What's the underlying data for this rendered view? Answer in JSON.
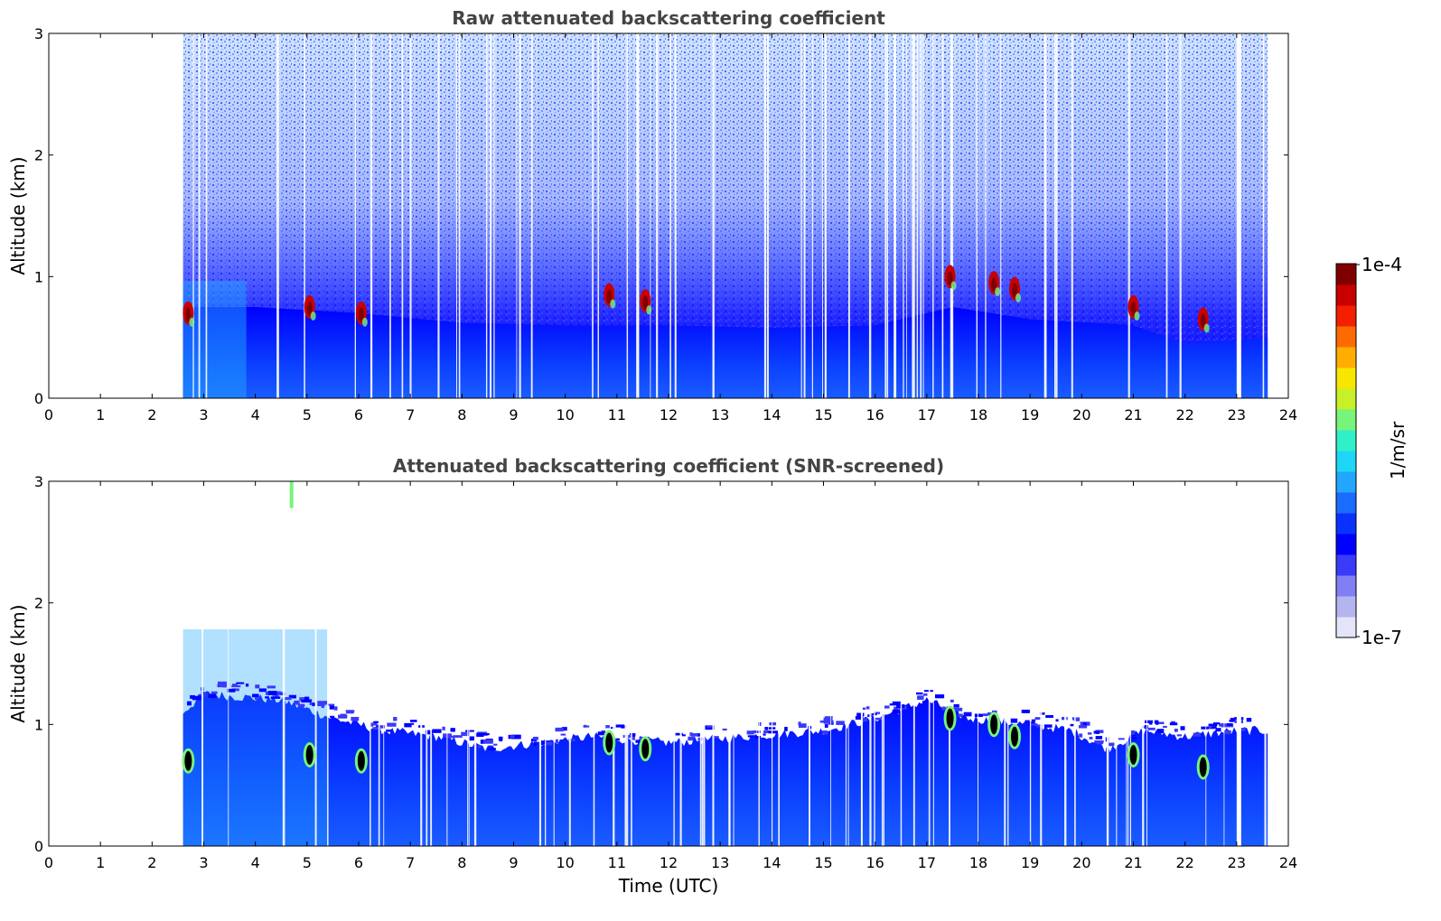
{
  "chart_data": [
    {
      "type": "heatmap",
      "title": "Raw attenuated backscattering coefficient",
      "xlabel": "",
      "ylabel": "Altitude (km)",
      "xlim": [
        0,
        24
      ],
      "ylim": [
        0,
        3
      ],
      "x_ticks": [
        "0",
        "1",
        "2",
        "3",
        "4",
        "5",
        "6",
        "7",
        "8",
        "9",
        "10",
        "11",
        "12",
        "13",
        "14",
        "15",
        "16",
        "17",
        "18",
        "19",
        "20",
        "21",
        "22",
        "23",
        "24"
      ],
      "y_ticks": [
        "0",
        "1",
        "2",
        "3"
      ],
      "data_time_range": [
        2.6,
        23.6
      ],
      "boundary_layer_top": [
        {
          "x": 2.6,
          "y": 0.75
        },
        {
          "x": 4.0,
          "y": 0.75
        },
        {
          "x": 6.0,
          "y": 0.7
        },
        {
          "x": 8.0,
          "y": 0.62
        },
        {
          "x": 10.0,
          "y": 0.6
        },
        {
          "x": 12.0,
          "y": 0.6
        },
        {
          "x": 14.0,
          "y": 0.58
        },
        {
          "x": 16.0,
          "y": 0.6
        },
        {
          "x": 17.5,
          "y": 0.75
        },
        {
          "x": 19.0,
          "y": 0.65
        },
        {
          "x": 21.0,
          "y": 0.6
        },
        {
          "x": 22.0,
          "y": 0.45
        },
        {
          "x": 23.6,
          "y": 0.5
        }
      ],
      "cloud_features": [
        {
          "time": 2.7,
          "altitude": 0.7
        },
        {
          "time": 5.05,
          "altitude": 0.75
        },
        {
          "time": 6.05,
          "altitude": 0.7
        },
        {
          "time": 10.85,
          "altitude": 0.85
        },
        {
          "time": 11.55,
          "altitude": 0.8
        },
        {
          "time": 17.45,
          "altitude": 1.0
        },
        {
          "time": 18.3,
          "altitude": 0.95
        },
        {
          "time": 18.7,
          "altitude": 0.9
        },
        {
          "time": 21.0,
          "altitude": 0.75
        },
        {
          "time": 22.35,
          "altitude": 0.65
        }
      ]
    },
    {
      "type": "heatmap",
      "title": "Attenuated backscattering coefficient (SNR-screened)",
      "xlabel": "Time (UTC)",
      "ylabel": "Altitude (km)",
      "xlim": [
        0,
        24
      ],
      "ylim": [
        0,
        3
      ],
      "x_ticks": [
        "0",
        "1",
        "2",
        "3",
        "4",
        "5",
        "6",
        "7",
        "8",
        "9",
        "10",
        "11",
        "12",
        "13",
        "14",
        "15",
        "16",
        "17",
        "18",
        "19",
        "20",
        "21",
        "22",
        "23",
        "24"
      ],
      "y_ticks": [
        "0",
        "1",
        "2",
        "3"
      ],
      "data_time_range": [
        2.6,
        23.6
      ],
      "boundary_layer_top": [
        {
          "x": 2.6,
          "y": 1.1
        },
        {
          "x": 3.0,
          "y": 1.25
        },
        {
          "x": 4.5,
          "y": 1.2
        },
        {
          "x": 5.5,
          "y": 1.05
        },
        {
          "x": 6.5,
          "y": 0.95
        },
        {
          "x": 7.5,
          "y": 0.9
        },
        {
          "x": 8.5,
          "y": 0.8
        },
        {
          "x": 9.5,
          "y": 0.85
        },
        {
          "x": 10.5,
          "y": 0.9
        },
        {
          "x": 12.0,
          "y": 0.85
        },
        {
          "x": 13.5,
          "y": 0.9
        },
        {
          "x": 15.0,
          "y": 0.95
        },
        {
          "x": 16.0,
          "y": 1.05
        },
        {
          "x": 17.0,
          "y": 1.2
        },
        {
          "x": 17.8,
          "y": 1.05
        },
        {
          "x": 19.0,
          "y": 1.0
        },
        {
          "x": 19.8,
          "y": 0.95
        },
        {
          "x": 20.5,
          "y": 0.8
        },
        {
          "x": 21.2,
          "y": 0.95
        },
        {
          "x": 22.0,
          "y": 0.9
        },
        {
          "x": 23.0,
          "y": 0.95
        },
        {
          "x": 23.6,
          "y": 0.95
        }
      ],
      "cloud_features": [
        {
          "time": 2.7,
          "altitude": 0.7
        },
        {
          "time": 5.05,
          "altitude": 0.75
        },
        {
          "time": 6.05,
          "altitude": 0.7
        },
        {
          "time": 10.85,
          "altitude": 0.85
        },
        {
          "time": 11.55,
          "altitude": 0.8
        },
        {
          "time": 17.45,
          "altitude": 1.05
        },
        {
          "time": 18.3,
          "altitude": 1.0
        },
        {
          "time": 18.7,
          "altitude": 0.9
        },
        {
          "time": 21.0,
          "altitude": 0.75
        },
        {
          "time": 22.35,
          "altitude": 0.65
        }
      ],
      "plume": {
        "time": 4.7,
        "altitude_range": [
          2.78,
          3.0
        ]
      }
    }
  ],
  "colorbar": {
    "label": "1/m/sr",
    "max_label": "1e-4",
    "min_label": "1e-7",
    "scale": "log",
    "colors": [
      "#e4e4f8",
      "#b4b4ef",
      "#8080f4",
      "#3a3af8",
      "#0000ff",
      "#0a32ff",
      "#1a6cff",
      "#22a6ff",
      "#1ed6f6",
      "#30f0c8",
      "#76f57a",
      "#c6f028",
      "#f8e600",
      "#ffae00",
      "#ff6a00",
      "#f41e00",
      "#c80000",
      "#800000"
    ]
  }
}
